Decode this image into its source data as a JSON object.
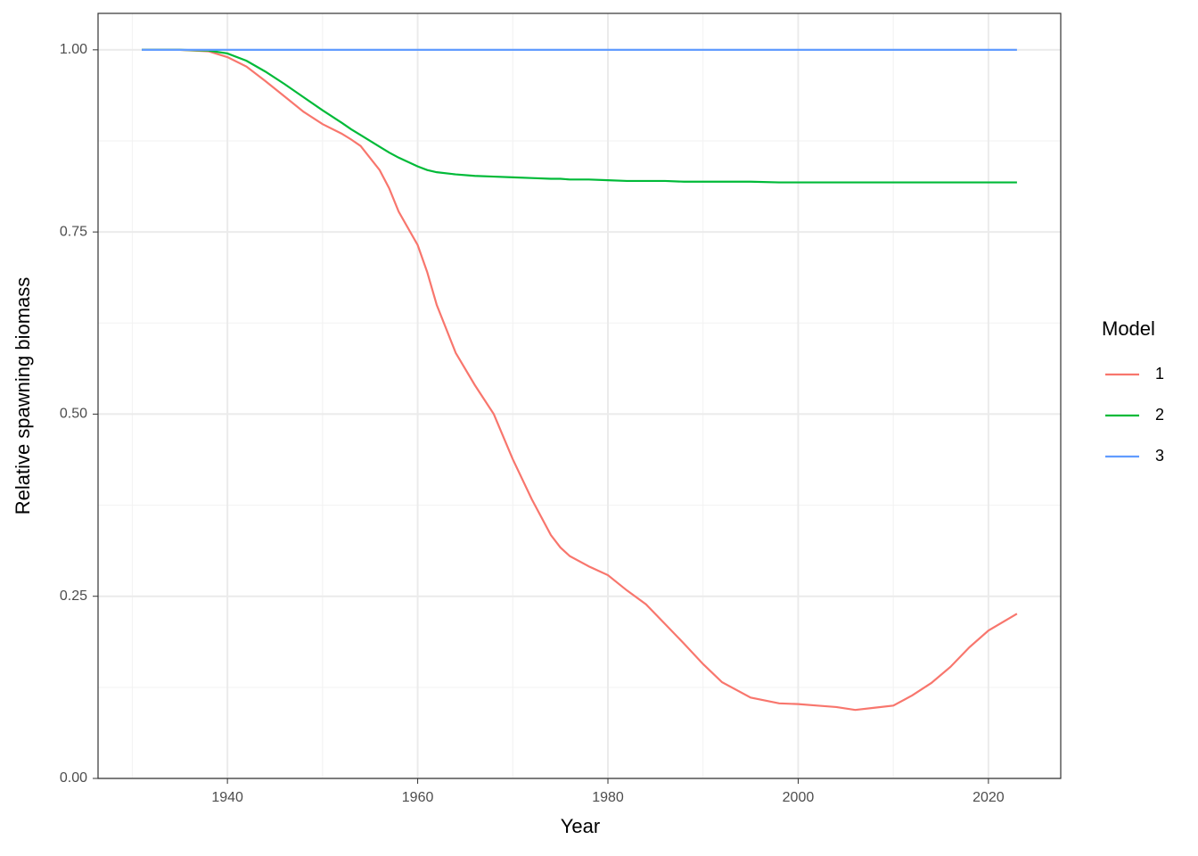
{
  "chart_data": {
    "type": "line",
    "x_label": "Year",
    "y_label": "Relative spawning biomass",
    "legend_title": "Model",
    "legend_position": "right",
    "grid": true,
    "x": [
      1931,
      1935,
      1938,
      1940,
      1942,
      1944,
      1946,
      1948,
      1950,
      1952,
      1953,
      1954,
      1956,
      1957,
      1958,
      1960,
      1961,
      1962,
      1964,
      1966,
      1968,
      1970,
      1972,
      1974,
      1975,
      1976,
      1978,
      1980,
      1982,
      1984,
      1986,
      1988,
      1990,
      1992,
      1995,
      1998,
      2000,
      2002,
      2004,
      2006,
      2008,
      2010,
      2012,
      2014,
      2016,
      2018,
      2020,
      2023
    ],
    "series": [
      {
        "name": "1",
        "color": "#F8766D",
        "values": [
          1.0,
          1.0,
          0.998,
          0.99,
          0.977,
          0.957,
          0.936,
          0.915,
          0.898,
          0.885,
          0.877,
          0.868,
          0.835,
          0.81,
          0.778,
          0.732,
          0.695,
          0.65,
          0.584,
          0.54,
          0.5,
          0.438,
          0.383,
          0.334,
          0.317,
          0.305,
          0.291,
          0.279,
          0.258,
          0.239,
          0.212,
          0.185,
          0.157,
          0.132,
          0.111,
          0.103,
          0.102,
          0.1,
          0.098,
          0.094,
          0.097,
          0.1,
          0.114,
          0.131,
          0.153,
          0.18,
          0.203,
          0.226
        ]
      },
      {
        "name": "2",
        "color": "#00BA38",
        "values": [
          1.0,
          1.0,
          0.999,
          0.995,
          0.985,
          0.97,
          0.953,
          0.935,
          0.917,
          0.9,
          0.891,
          0.883,
          0.867,
          0.859,
          0.852,
          0.84,
          0.835,
          0.832,
          0.829,
          0.827,
          0.826,
          0.825,
          0.824,
          0.823,
          0.823,
          0.822,
          0.822,
          0.821,
          0.82,
          0.82,
          0.82,
          0.819,
          0.819,
          0.819,
          0.819,
          0.818,
          0.818,
          0.818,
          0.818,
          0.818,
          0.818,
          0.818,
          0.818,
          0.818,
          0.818,
          0.818,
          0.818,
          0.818
        ]
      },
      {
        "name": "3",
        "color": "#619CFF",
        "values": [
          1,
          1,
          1,
          1,
          1,
          1,
          1,
          1,
          1,
          1,
          1,
          1,
          1,
          1,
          1,
          1,
          1,
          1,
          1,
          1,
          1,
          1,
          1,
          1,
          1,
          1,
          1,
          1,
          1,
          1,
          1,
          1,
          1,
          1,
          1,
          1,
          1,
          1,
          1,
          1,
          1,
          1,
          1,
          1,
          1,
          1,
          1,
          1
        ]
      }
    ],
    "xlim": [
      1926.4,
      2027.6
    ],
    "xticks": [
      1940,
      1960,
      1980,
      2000,
      2020
    ],
    "xminor": [
      1930,
      1950,
      1970,
      1990,
      2010
    ],
    "ylim": [
      0,
      1.05
    ],
    "yticks": [
      {
        "value": 0,
        "label": "0.00"
      },
      {
        "value": 0.25,
        "label": "0.25"
      },
      {
        "value": 0.5,
        "label": "0.50"
      },
      {
        "value": 0.75,
        "label": "0.75"
      },
      {
        "value": 1,
        "label": "1.00"
      }
    ],
    "yminor": [
      0.125,
      0.375,
      0.625,
      0.875
    ]
  }
}
